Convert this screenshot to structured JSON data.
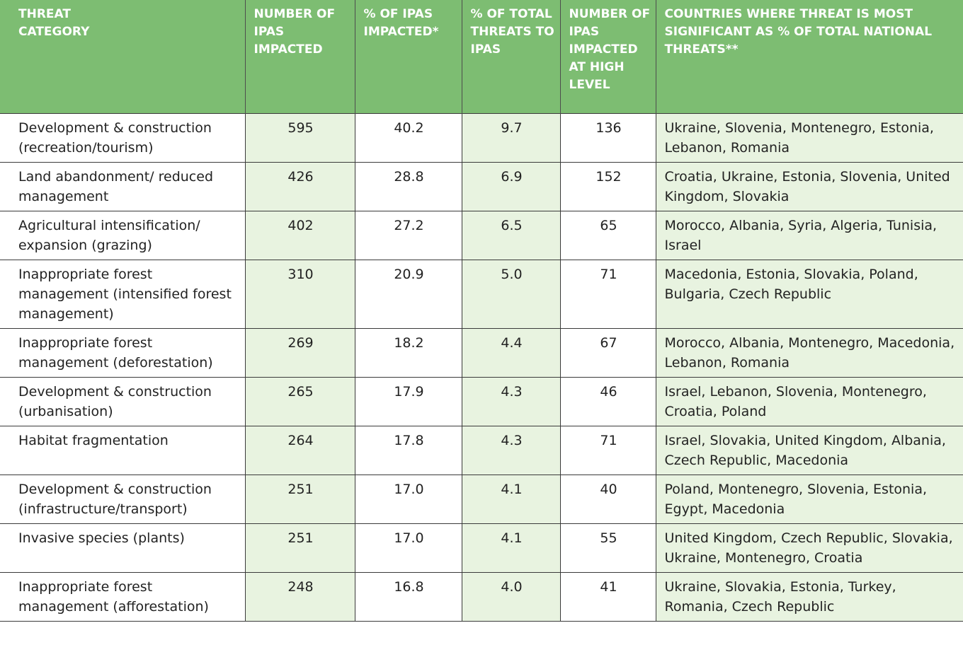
{
  "table": {
    "headers": [
      "THREAT CATEGORY",
      "NUMBER OF IPAS IMPACTED",
      "% OF IPAS IMPACTED*",
      "% OF TOTAL THREATS TO IPAS",
      "NUMBER OF IPAS IMPACTED AT HIGH LEVEL",
      "COUNTRIES WHERE THREAT IS MOST SIGNIFICANT AS % OF TOTAL NATIONAL THREATS**"
    ],
    "rows": [
      [
        "Development & construction (recreation/tourism)",
        "595",
        "40.2",
        "9.7",
        "136",
        "Ukraine, Slovenia, Montenegro, Estonia, Lebanon, Romania"
      ],
      [
        "Land abandonment/ reduced management",
        "426",
        "28.8",
        "6.9",
        "152",
        "Croatia, Ukraine, Estonia, Slovenia, United Kingdom, Slovakia"
      ],
      [
        "Agricultural intensification/ expansion (grazing)",
        "402",
        "27.2",
        "6.5",
        "65",
        "Morocco, Albania, Syria, Algeria, Tunisia, Israel"
      ],
      [
        "Inappropriate forest management (intensified forest management)",
        "310",
        "20.9",
        "5.0",
        "71",
        "Macedonia, Estonia, Slovakia, Poland, Bulgaria, Czech Republic"
      ],
      [
        "Inappropriate forest management (deforestation)",
        "269",
        "18.2",
        "4.4",
        "67",
        "Morocco, Albania, Montenegro, Macedonia, Lebanon, Romania"
      ],
      [
        "Development & construction (urbanisation)",
        "265",
        "17.9",
        "4.3",
        "46",
        "Israel, Lebanon, Slovenia, Montenegro, Croatia, Poland"
      ],
      [
        "Habitat fragmentation",
        "264",
        "17.8",
        "4.3",
        "71",
        "Israel, Slovakia, United Kingdom, Albania, Czech Republic, Macedonia"
      ],
      [
        "Development & construction (infrastructure/transport)",
        "251",
        "17.0",
        "4.1",
        "40",
        "Poland, Montenegro, Slovenia, Estonia, Egypt, Macedonia"
      ],
      [
        "Invasive species (plants)",
        "251",
        "17.0",
        "4.1",
        "55",
        "United Kingdom, Czech Republic, Slovakia, Ukraine, Montenegro, Croatia"
      ],
      [
        "Inappropriate forest management (afforestation)",
        "248",
        "16.8",
        "4.0",
        "41",
        "Ukraine, Slovakia, Estonia, Turkey, Romania, Czech Republic"
      ]
    ]
  }
}
